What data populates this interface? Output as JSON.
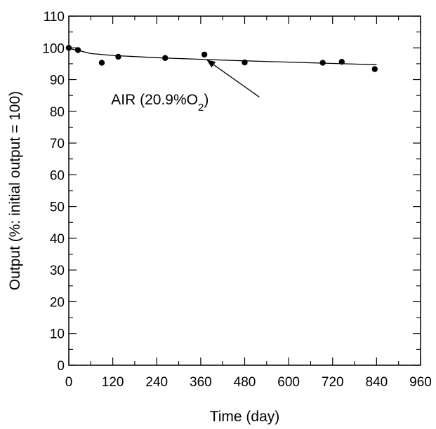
{
  "chart_data": {
    "type": "scatter",
    "title": "",
    "xlabel": "Time (day)",
    "ylabel": "Output (%: initial output = 100)",
    "xlim": [
      0,
      960
    ],
    "ylim": [
      0,
      110
    ],
    "x_ticks": [
      0,
      120,
      240,
      360,
      480,
      600,
      720,
      840,
      960
    ],
    "y_ticks": [
      0,
      10,
      20,
      30,
      40,
      50,
      60,
      70,
      80,
      90,
      100,
      110
    ],
    "grid": false,
    "series": [
      {
        "marker": "filled-circle",
        "points": [
          {
            "x": 0,
            "y": 100.0
          },
          {
            "x": 25,
            "y": 99.3
          },
          {
            "x": 90,
            "y": 95.3
          },
          {
            "x": 135,
            "y": 97.2
          },
          {
            "x": 263,
            "y": 96.8
          },
          {
            "x": 370,
            "y": 97.9
          },
          {
            "x": 480,
            "y": 95.4
          },
          {
            "x": 693,
            "y": 95.3
          },
          {
            "x": 745,
            "y": 95.6
          },
          {
            "x": 835,
            "y": 93.3
          }
        ]
      }
    ],
    "fit_line": {
      "style": "solid",
      "points": [
        {
          "x": 0,
          "y": 99.8
        },
        {
          "x": 25,
          "y": 99.2
        },
        {
          "x": 60,
          "y": 98.2
        },
        {
          "x": 120,
          "y": 97.6
        },
        {
          "x": 240,
          "y": 96.9
        },
        {
          "x": 360,
          "y": 96.4
        },
        {
          "x": 480,
          "y": 95.9
        },
        {
          "x": 600,
          "y": 95.5
        },
        {
          "x": 720,
          "y": 95.1
        },
        {
          "x": 840,
          "y": 94.7
        }
      ]
    },
    "annotation": {
      "text_main": "AIR (20.9%O",
      "text_sub": "2",
      "text_end": ")",
      "label_x": 560,
      "label_y": 83,
      "arrow_from": {
        "x": 520,
        "y": 84.5
      },
      "arrow_to": {
        "x": 378,
        "y": 96.1
      }
    }
  }
}
